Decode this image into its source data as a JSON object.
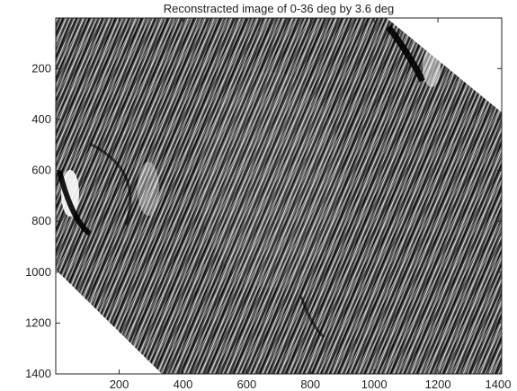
{
  "chart_data": {
    "type": "heatmap",
    "title": "Reconstracted image of 0-36 deg by 3.6 deg",
    "xlabel": "",
    "ylabel": "",
    "colormap": "grayscale",
    "xlim": [
      1,
      1400
    ],
    "ylim": [
      1,
      1400
    ],
    "y_reversed": true,
    "x_ticks": [
      200,
      400,
      600,
      800,
      1000,
      1200,
      1400
    ],
    "y_ticks": [
      200,
      400,
      600,
      800,
      1000,
      1200,
      1400
    ],
    "grid": false,
    "legend": "none",
    "colors": {
      "background": "#ffffff",
      "texture_dark": "#1a1a1a",
      "texture_light": "#f2f2f2",
      "axis": "#222222"
    }
  }
}
